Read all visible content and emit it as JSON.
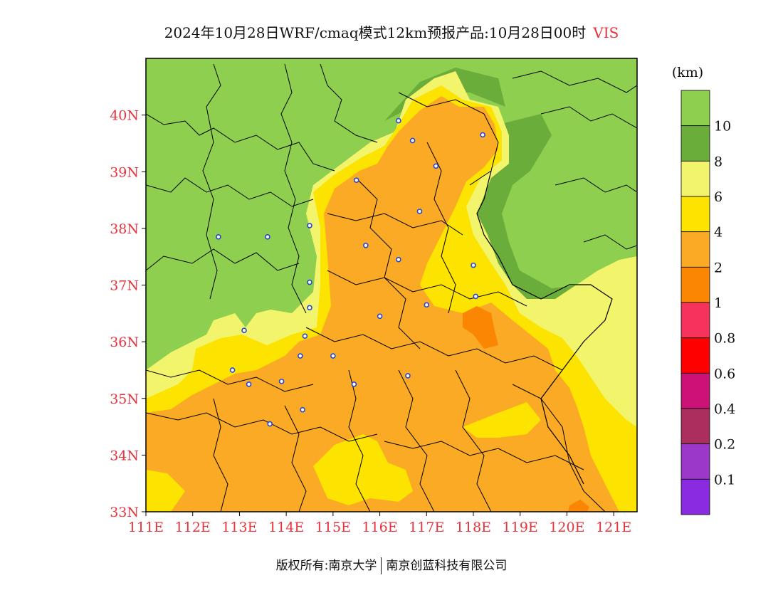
{
  "title": {
    "main": "2024年10月28日WRF/cmaq模式12km预报产品:10月28日00时",
    "variable": "VIS"
  },
  "colorbar": {
    "unit": "(km)",
    "levels": [
      {
        "label": "",
        "color": "#8ecf4f"
      },
      {
        "label": "10",
        "color": "#6bad3a"
      },
      {
        "label": "8",
        "color": "#f2f46c"
      },
      {
        "label": "6",
        "color": "#fce300"
      },
      {
        "label": "4",
        "color": "#faaa24"
      },
      {
        "label": "2",
        "color": "#fb8604"
      },
      {
        "label": "1",
        "color": "#f5335d"
      },
      {
        "label": "0.8",
        "color": "#ff0000"
      },
      {
        "label": "0.6",
        "color": "#cc1177"
      },
      {
        "label": "0.4",
        "color": "#aa2e5e"
      },
      {
        "label": "0.2",
        "color": "#9b38c9"
      },
      {
        "label": "0.1",
        "color": "#8a2be2"
      }
    ]
  },
  "axes": {
    "lon_min": 111,
    "lon_max": 121.5,
    "lat_min": 33,
    "lat_max": 41,
    "x_ticks": [
      "111E",
      "112E",
      "113E",
      "114E",
      "115E",
      "116E",
      "117E",
      "118E",
      "119E",
      "120E",
      "121E"
    ],
    "y_ticks": [
      "33N",
      "34N",
      "35N",
      "36N",
      "37N",
      "38N",
      "39N",
      "40N"
    ]
  },
  "stations": [
    {
      "lon": 116.4,
      "lat": 39.9
    },
    {
      "lon": 116.7,
      "lat": 39.55
    },
    {
      "lon": 117.2,
      "lat": 39.1
    },
    {
      "lon": 118.2,
      "lat": 39.65
    },
    {
      "lon": 115.5,
      "lat": 38.85
    },
    {
      "lon": 116.85,
      "lat": 38.3
    },
    {
      "lon": 114.5,
      "lat": 38.05
    },
    {
      "lon": 115.7,
      "lat": 37.7
    },
    {
      "lon": 116.4,
      "lat": 37.45
    },
    {
      "lon": 118.0,
      "lat": 37.35
    },
    {
      "lon": 112.55,
      "lat": 37.85
    },
    {
      "lon": 113.6,
      "lat": 37.85
    },
    {
      "lon": 114.5,
      "lat": 37.05
    },
    {
      "lon": 114.5,
      "lat": 36.6
    },
    {
      "lon": 117.0,
      "lat": 36.65
    },
    {
      "lon": 118.05,
      "lat": 36.8
    },
    {
      "lon": 116.0,
      "lat": 36.45
    },
    {
      "lon": 113.1,
      "lat": 36.2
    },
    {
      "lon": 114.4,
      "lat": 36.1
    },
    {
      "lon": 114.3,
      "lat": 35.75
    },
    {
      "lon": 115.0,
      "lat": 35.75
    },
    {
      "lon": 112.85,
      "lat": 35.5
    },
    {
      "lon": 113.2,
      "lat": 35.25
    },
    {
      "lon": 113.9,
      "lat": 35.3
    },
    {
      "lon": 115.45,
      "lat": 35.25
    },
    {
      "lon": 116.6,
      "lat": 35.4
    },
    {
      "lon": 114.35,
      "lat": 34.8
    },
    {
      "lon": 113.65,
      "lat": 34.55
    }
  ],
  "footer": {
    "left": "版权所有:南京大学",
    "right": "南京创蓝科技有限公司"
  }
}
